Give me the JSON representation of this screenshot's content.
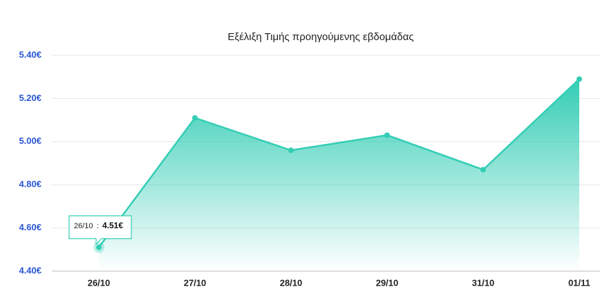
{
  "chart_data": {
    "type": "area",
    "title": "Εξέλιξη Τιμής προηγούμενης εβδομάδας",
    "categories": [
      "26/10",
      "27/10",
      "28/10",
      "29/10",
      "31/10",
      "01/11"
    ],
    "values": [
      4.51,
      5.11,
      4.96,
      5.03,
      4.87,
      5.29
    ],
    "value_labels": [
      "4.51€",
      null,
      null,
      null,
      null,
      null
    ],
    "color": "#33cdb5",
    "ylim": [
      4.4,
      5.4
    ],
    "yticks": [
      {
        "value": 4.4,
        "label": "4.40€"
      },
      {
        "value": 4.6,
        "label": "4.60€"
      },
      {
        "value": 4.8,
        "label": "4.80€"
      },
      {
        "value": 5.0,
        "label": "5.00€"
      },
      {
        "value": 5.2,
        "label": "5.20€"
      },
      {
        "value": 5.4,
        "label": "5.40€"
      }
    ],
    "grid": true
  }
}
